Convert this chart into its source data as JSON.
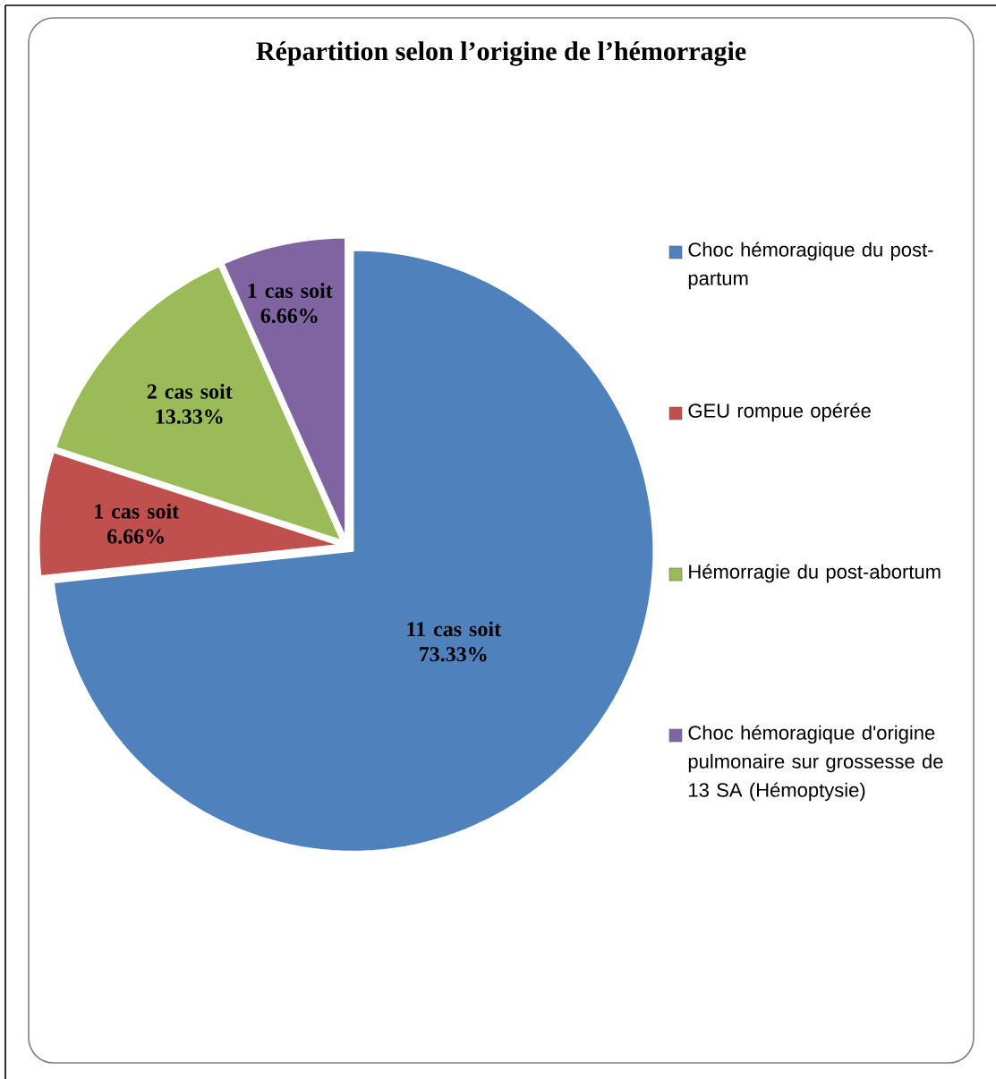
{
  "chart_data": {
    "type": "pie",
    "title": "Répartition selon l’origine de l’hémorragie",
    "categories": [
      "Choc hémoragique du post-partum",
      "GEU rompue opérée",
      "Hémorragie du post-abortum",
      "Choc hémoragique d'origine pulmonaire sur grossesse de 13 SA (Hémoptysie)"
    ],
    "values": [
      11,
      1,
      2,
      1
    ],
    "value_labels": [
      "11 cas soit 73.33%",
      "1 cas soit 6.66%",
      "2 cas soit 13.33%",
      "1 cas soit 6.66%"
    ],
    "colors": [
      "#4f81bd",
      "#c0504d",
      "#9bbb59",
      "#8064a2"
    ],
    "legend": "right"
  }
}
